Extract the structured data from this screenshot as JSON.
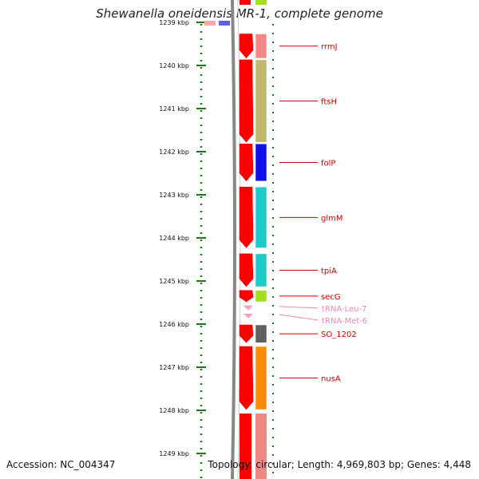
{
  "title": "Shewanella oneidensis MR-1, complete genome",
  "footer": {
    "accession": "Accession: NC_004347",
    "topology": "Topology: circular; Length: 4,969,803 bp; Genes: 4,448"
  },
  "scale": {
    "ticks": [
      {
        "label": "1239 kbp",
        "value": 1239
      },
      {
        "label": "1240 kbp",
        "value": 1240
      },
      {
        "label": "1241 kbp",
        "value": 1241
      },
      {
        "label": "1242 kbp",
        "value": 1242
      },
      {
        "label": "1243 kbp",
        "value": 1243
      },
      {
        "label": "1244 kbp",
        "value": 1244
      },
      {
        "label": "1245 kbp",
        "value": 1245
      },
      {
        "label": "1246 kbp",
        "value": 1246
      },
      {
        "label": "1247 kbp",
        "value": 1247
      },
      {
        "label": "1248 kbp",
        "value": 1248
      },
      {
        "label": "1249 kbp",
        "value": 1249
      }
    ]
  },
  "colors": {
    "cds": "#ff0000",
    "trna": "#f4a0c8",
    "label_cds": "#cc0000",
    "label_trna": "#e88aba",
    "backbone": "#888888",
    "tick": "#1a7a1a"
  },
  "features": [
    {
      "name": "rrmJ",
      "start": 1239.25,
      "end": 1239.85,
      "type": "cds",
      "cog": "#f08888"
    },
    {
      "name": "ftsH",
      "start": 1239.85,
      "end": 1241.8,
      "type": "cds",
      "cog": "#c0b870"
    },
    {
      "name": "folP",
      "start": 1241.8,
      "end": 1242.7,
      "type": "cds",
      "cog": "#1010ee"
    },
    {
      "name": "glmM",
      "start": 1242.8,
      "end": 1244.25,
      "type": "cds",
      "cog": "#20c8c8"
    },
    {
      "name": "tpiA",
      "start": 1244.35,
      "end": 1245.15,
      "type": "cds",
      "cog": "#20c8c8"
    },
    {
      "name": "secG",
      "start": 1245.2,
      "end": 1245.5,
      "type": "cds",
      "cog": "#a0e020"
    },
    {
      "name": "tRNA-Leu-7",
      "start": 1245.55,
      "end": 1245.63,
      "type": "trna"
    },
    {
      "name": "tRNA-Met-6",
      "start": 1245.74,
      "end": 1245.82,
      "type": "trna"
    },
    {
      "name": "SO_1202",
      "start": 1246.0,
      "end": 1246.45,
      "type": "cds",
      "cog": "#606060"
    },
    {
      "name": "nusA",
      "start": 1246.5,
      "end": 1248.0,
      "type": "cds",
      "cog": "#ff8c00"
    }
  ]
}
